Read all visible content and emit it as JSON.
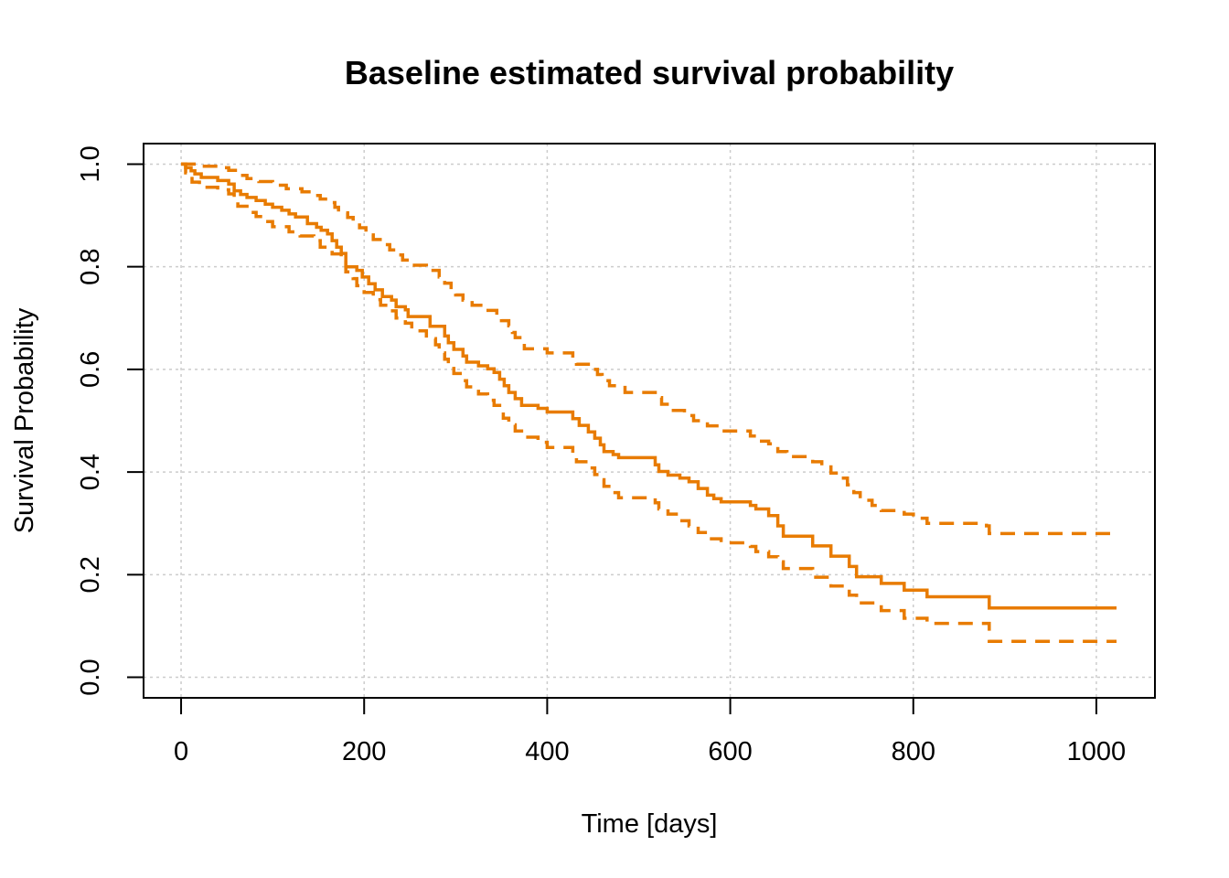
{
  "chart_data": {
    "type": "line",
    "title": "Baseline estimated survival probability",
    "xlabel": "Time [days]",
    "ylabel": "Survival Probability",
    "xlim": [
      -41,
      1064
    ],
    "ylim": [
      -0.04,
      1.04
    ],
    "x_ticks": [
      0,
      200,
      400,
      600,
      800,
      1000
    ],
    "x_tick_labels": [
      "0",
      "200",
      "400",
      "600",
      "800",
      "1000"
    ],
    "y_ticks": [
      0.0,
      0.2,
      0.4,
      0.6,
      0.8,
      1.0
    ],
    "y_tick_labels": [
      "0.0",
      "0.2",
      "0.4",
      "0.6",
      "0.8",
      "1.0"
    ],
    "grid": true,
    "color": "#E87B00",
    "grid_color": "#cccccc",
    "series": [
      {
        "style": "solid",
        "step_points": [
          [
            0,
            1.0
          ],
          [
            5,
            0.993
          ],
          [
            11,
            0.987
          ],
          [
            15,
            0.981
          ],
          [
            22,
            0.974
          ],
          [
            40,
            0.968
          ],
          [
            52,
            0.961
          ],
          [
            58,
            0.948
          ],
          [
            65,
            0.941
          ],
          [
            72,
            0.935
          ],
          [
            82,
            0.929
          ],
          [
            92,
            0.922
          ],
          [
            100,
            0.916
          ],
          [
            110,
            0.91
          ],
          [
            118,
            0.903
          ],
          [
            125,
            0.897
          ],
          [
            138,
            0.884
          ],
          [
            148,
            0.877
          ],
          [
            153,
            0.871
          ],
          [
            160,
            0.864
          ],
          [
            165,
            0.851
          ],
          [
            170,
            0.838
          ],
          [
            175,
            0.826
          ],
          [
            180,
            0.8
          ],
          [
            192,
            0.793
          ],
          [
            198,
            0.78
          ],
          [
            205,
            0.767
          ],
          [
            212,
            0.755
          ],
          [
            220,
            0.742
          ],
          [
            230,
            0.735
          ],
          [
            235,
            0.722
          ],
          [
            245,
            0.716
          ],
          [
            248,
            0.703
          ],
          [
            272,
            0.684
          ],
          [
            288,
            0.665
          ],
          [
            292,
            0.652
          ],
          [
            298,
            0.639
          ],
          [
            308,
            0.626
          ],
          [
            312,
            0.614
          ],
          [
            325,
            0.607
          ],
          [
            335,
            0.601
          ],
          [
            342,
            0.594
          ],
          [
            348,
            0.581
          ],
          [
            353,
            0.568
          ],
          [
            358,
            0.555
          ],
          [
            365,
            0.543
          ],
          [
            372,
            0.53
          ],
          [
            390,
            0.524
          ],
          [
            400,
            0.517
          ],
          [
            428,
            0.504
          ],
          [
            435,
            0.491
          ],
          [
            445,
            0.478
          ],
          [
            452,
            0.466
          ],
          [
            458,
            0.453
          ],
          [
            462,
            0.44
          ],
          [
            472,
            0.434
          ],
          [
            478,
            0.428
          ],
          [
            518,
            0.414
          ],
          [
            522,
            0.401
          ],
          [
            532,
            0.394
          ],
          [
            545,
            0.388
          ],
          [
            555,
            0.381
          ],
          [
            565,
            0.368
          ],
          [
            575,
            0.355
          ],
          [
            582,
            0.348
          ],
          [
            590,
            0.342
          ],
          [
            622,
            0.335
          ],
          [
            628,
            0.328
          ],
          [
            642,
            0.315
          ],
          [
            652,
            0.295
          ],
          [
            658,
            0.275
          ],
          [
            690,
            0.256
          ],
          [
            710,
            0.236
          ],
          [
            730,
            0.216
          ],
          [
            738,
            0.196
          ],
          [
            765,
            0.183
          ],
          [
            790,
            0.17
          ],
          [
            815,
            0.157
          ],
          [
            883,
            0.135
          ],
          [
            1022,
            0.135
          ]
        ]
      },
      {
        "style": "dashed",
        "step_points": [
          [
            0,
            1.0
          ],
          [
            8,
            1.0
          ],
          [
            22,
            0.996
          ],
          [
            40,
            0.993
          ],
          [
            52,
            0.988
          ],
          [
            62,
            0.978
          ],
          [
            72,
            0.972
          ],
          [
            85,
            0.966
          ],
          [
            100,
            0.959
          ],
          [
            115,
            0.952
          ],
          [
            132,
            0.946
          ],
          [
            142,
            0.939
          ],
          [
            152,
            0.932
          ],
          [
            160,
            0.925
          ],
          [
            168,
            0.916
          ],
          [
            172,
            0.905
          ],
          [
            182,
            0.896
          ],
          [
            188,
            0.886
          ],
          [
            195,
            0.876
          ],
          [
            202,
            0.862
          ],
          [
            210,
            0.853
          ],
          [
            220,
            0.843
          ],
          [
            228,
            0.833
          ],
          [
            235,
            0.823
          ],
          [
            242,
            0.813
          ],
          [
            250,
            0.803
          ],
          [
            268,
            0.793
          ],
          [
            282,
            0.78
          ],
          [
            288,
            0.768
          ],
          [
            295,
            0.755
          ],
          [
            300,
            0.745
          ],
          [
            308,
            0.735
          ],
          [
            318,
            0.725
          ],
          [
            330,
            0.715
          ],
          [
            345,
            0.705
          ],
          [
            350,
            0.695
          ],
          [
            358,
            0.685
          ],
          [
            362,
            0.672
          ],
          [
            365,
            0.662
          ],
          [
            372,
            0.652
          ],
          [
            375,
            0.64
          ],
          [
            400,
            0.632
          ],
          [
            428,
            0.62
          ],
          [
            432,
            0.61
          ],
          [
            445,
            0.6
          ],
          [
            455,
            0.59
          ],
          [
            460,
            0.578
          ],
          [
            468,
            0.568
          ],
          [
            485,
            0.555
          ],
          [
            520,
            0.545
          ],
          [
            525,
            0.532
          ],
          [
            535,
            0.52
          ],
          [
            550,
            0.51
          ],
          [
            560,
            0.5
          ],
          [
            575,
            0.49
          ],
          [
            590,
            0.48
          ],
          [
            622,
            0.47
          ],
          [
            632,
            0.46
          ],
          [
            642,
            0.455
          ],
          [
            652,
            0.44
          ],
          [
            662,
            0.43
          ],
          [
            690,
            0.42
          ],
          [
            700,
            0.41
          ],
          [
            710,
            0.398
          ],
          [
            718,
            0.388
          ],
          [
            728,
            0.375
          ],
          [
            735,
            0.36
          ],
          [
            742,
            0.345
          ],
          [
            755,
            0.335
          ],
          [
            765,
            0.325
          ],
          [
            790,
            0.318
          ],
          [
            800,
            0.31
          ],
          [
            815,
            0.3
          ],
          [
            880,
            0.295
          ],
          [
            883,
            0.28
          ],
          [
            1022,
            0.28
          ]
        ]
      },
      {
        "style": "dashed",
        "step_points": [
          [
            0,
            1.0
          ],
          [
            5,
            0.983
          ],
          [
            12,
            0.965
          ],
          [
            20,
            0.955
          ],
          [
            40,
            0.95
          ],
          [
            52,
            0.942
          ],
          [
            58,
            0.928
          ],
          [
            62,
            0.918
          ],
          [
            72,
            0.906
          ],
          [
            82,
            0.898
          ],
          [
            92,
            0.888
          ],
          [
            100,
            0.878
          ],
          [
            118,
            0.868
          ],
          [
            130,
            0.86
          ],
          [
            145,
            0.851
          ],
          [
            152,
            0.838
          ],
          [
            165,
            0.825
          ],
          [
            175,
            0.812
          ],
          [
            180,
            0.79
          ],
          [
            188,
            0.777
          ],
          [
            192,
            0.763
          ],
          [
            200,
            0.75
          ],
          [
            210,
            0.736
          ],
          [
            218,
            0.725
          ],
          [
            228,
            0.714
          ],
          [
            235,
            0.7
          ],
          [
            245,
            0.69
          ],
          [
            252,
            0.675
          ],
          [
            268,
            0.66
          ],
          [
            278,
            0.648
          ],
          [
            282,
            0.632
          ],
          [
            288,
            0.62
          ],
          [
            292,
            0.605
          ],
          [
            298,
            0.592
          ],
          [
            308,
            0.578
          ],
          [
            312,
            0.566
          ],
          [
            325,
            0.552
          ],
          [
            335,
            0.54
          ],
          [
            342,
            0.53
          ],
          [
            348,
            0.518
          ],
          [
            352,
            0.505
          ],
          [
            358,
            0.492
          ],
          [
            365,
            0.48
          ],
          [
            372,
            0.468
          ],
          [
            390,
            0.458
          ],
          [
            400,
            0.448
          ],
          [
            428,
            0.43
          ],
          [
            432,
            0.42
          ],
          [
            445,
            0.408
          ],
          [
            452,
            0.395
          ],
          [
            458,
            0.385
          ],
          [
            462,
            0.372
          ],
          [
            472,
            0.36
          ],
          [
            478,
            0.35
          ],
          [
            518,
            0.34
          ],
          [
            522,
            0.328
          ],
          [
            532,
            0.318
          ],
          [
            545,
            0.305
          ],
          [
            555,
            0.295
          ],
          [
            565,
            0.282
          ],
          [
            575,
            0.27
          ],
          [
            590,
            0.262
          ],
          [
            622,
            0.255
          ],
          [
            628,
            0.245
          ],
          [
            642,
            0.235
          ],
          [
            652,
            0.225
          ],
          [
            658,
            0.212
          ],
          [
            690,
            0.195
          ],
          [
            710,
            0.178
          ],
          [
            730,
            0.16
          ],
          [
            738,
            0.145
          ],
          [
            765,
            0.13
          ],
          [
            790,
            0.115
          ],
          [
            815,
            0.105
          ],
          [
            883,
            0.07
          ],
          [
            1022,
            0.07
          ]
        ]
      }
    ]
  }
}
